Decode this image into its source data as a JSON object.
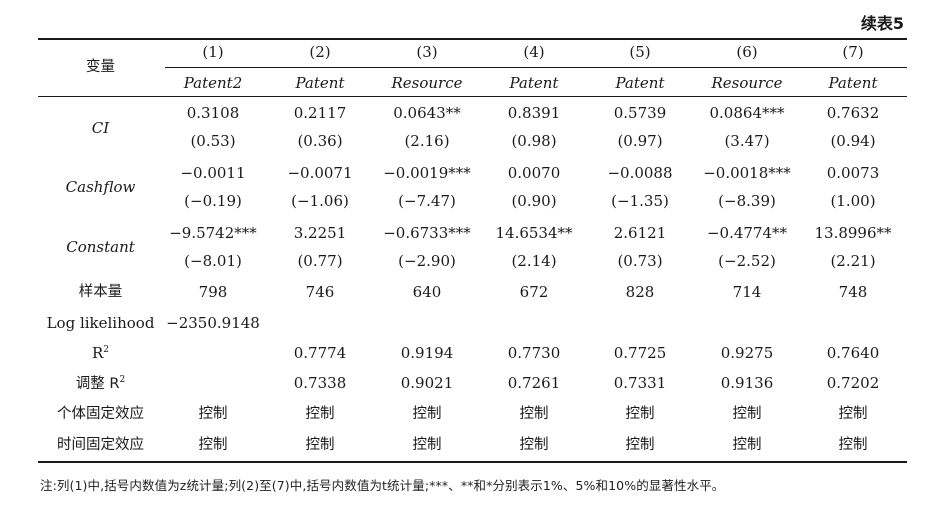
{
  "continued_label": "续表5",
  "stub_header": "变量",
  "columns": [
    {
      "num": "(1)",
      "dep": "Patent2"
    },
    {
      "num": "(2)",
      "dep": "Patent"
    },
    {
      "num": "(3)",
      "dep": "Resource"
    },
    {
      "num": "(4)",
      "dep": "Patent"
    },
    {
      "num": "(5)",
      "dep": "Patent"
    },
    {
      "num": "(6)",
      "dep": "Resource"
    },
    {
      "num": "(7)",
      "dep": "Patent"
    }
  ],
  "variables": [
    {
      "name": "CI",
      "coef": [
        "0.3108",
        "0.2117",
        "0.0643**",
        "0.8391",
        "0.5739",
        "0.0864***",
        "0.7632"
      ],
      "stat": [
        "(0.53)",
        "(0.36)",
        "(2.16)",
        "(0.98)",
        "(0.97)",
        "(3.47)",
        "(0.94)"
      ]
    },
    {
      "name": "Cashflow",
      "coef": [
        "−0.0011",
        "−0.0071",
        "−0.0019***",
        "0.0070",
        "−0.0088",
        "−0.0018***",
        "0.0073"
      ],
      "stat": [
        "(−0.19)",
        "(−1.06)",
        "(−7.47)",
        "(0.90)",
        "(−1.35)",
        "(−8.39)",
        "(1.00)"
      ]
    },
    {
      "name": "Constant",
      "coef": [
        "−9.5742***",
        "3.2251",
        "−0.6733***",
        "14.6534**",
        "2.6121",
        "−0.4774**",
        "13.8996**"
      ],
      "stat": [
        "(−8.01)",
        "(0.77)",
        "(−2.90)",
        "(2.14)",
        "(0.73)",
        "(−2.52)",
        "(2.21)"
      ]
    }
  ],
  "stats": [
    {
      "label": "样本量",
      "values": [
        "798",
        "746",
        "640",
        "672",
        "828",
        "714",
        "748"
      ]
    },
    {
      "label": "Log likelihood",
      "values": [
        "−2350.9148",
        "",
        "",
        "",
        "",
        "",
        ""
      ]
    },
    {
      "label_main": "R",
      "label_sup": "2",
      "values": [
        "",
        "0.7774",
        "0.9194",
        "0.7730",
        "0.7725",
        "0.9275",
        "0.7640"
      ]
    },
    {
      "label_main": "调整 R",
      "label_sup": "2",
      "values": [
        "",
        "0.7338",
        "0.9021",
        "0.7261",
        "0.7331",
        "0.9136",
        "0.7202"
      ]
    },
    {
      "label": "个体固定效应",
      "values": [
        "控制",
        "控制",
        "控制",
        "控制",
        "控制",
        "控制",
        "控制"
      ]
    },
    {
      "label": "时间固定效应",
      "values": [
        "控制",
        "控制",
        "控制",
        "控制",
        "控制",
        "控制",
        "控制"
      ]
    }
  ],
  "note": "注:列(1)中,括号内数值为z统计量;列(2)至(7)中,括号内数值为t统计量;***、**和*分别表示1%、5%和10%的显著性水平。"
}
